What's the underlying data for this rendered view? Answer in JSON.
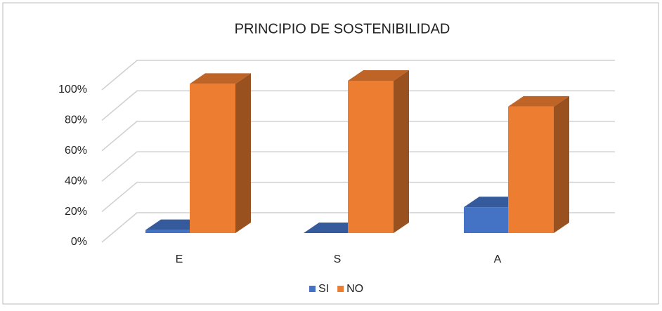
{
  "chart_data": {
    "type": "bar3d",
    "title": "PRINCIPIO DE SOSTENIBILIDAD",
    "categories": [
      "E",
      "S",
      "A"
    ],
    "series": [
      {
        "name": "SI",
        "color": "#4472c4",
        "values": [
          2,
          0,
          17
        ]
      },
      {
        "name": "NO",
        "color": "#ed7d31",
        "values": [
          98,
          100,
          83
        ]
      }
    ],
    "ylim": [
      0,
      100
    ],
    "yticks": [
      {
        "value": 0,
        "label": "0%"
      },
      {
        "value": 20,
        "label": "20%"
      },
      {
        "value": 40,
        "label": "40%"
      },
      {
        "value": 60,
        "label": "60%"
      },
      {
        "value": 80,
        "label": "80%"
      },
      {
        "value": 100,
        "label": "100%"
      }
    ],
    "grid": true,
    "legend": "bottom"
  }
}
